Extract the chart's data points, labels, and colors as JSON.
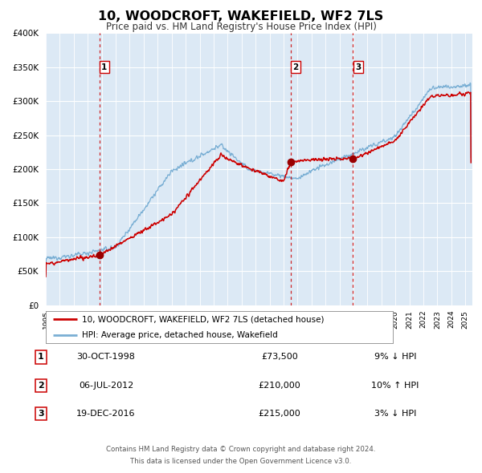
{
  "title": "10, WOODCROFT, WAKEFIELD, WF2 7LS",
  "subtitle": "Price paid vs. HM Land Registry's House Price Index (HPI)",
  "bg_color": "#dce9f5",
  "red_line_color": "#cc0000",
  "blue_line_color": "#7aafd4",
  "grid_color": "#c8d8e8",
  "ylim": [
    0,
    400000
  ],
  "yticks": [
    0,
    50000,
    100000,
    150000,
    200000,
    250000,
    300000,
    350000,
    400000
  ],
  "sale_events": [
    {
      "label": "1",
      "date_x": 1998.83,
      "price": 73500
    },
    {
      "label": "2",
      "date_x": 2012.51,
      "price": 210000
    },
    {
      "label": "3",
      "date_x": 2016.97,
      "price": 215000
    }
  ],
  "table_rows": [
    {
      "num": "1",
      "date": "30-OCT-1998",
      "price": "£73,500",
      "hpi": "9% ↓ HPI"
    },
    {
      "num": "2",
      "date": "06-JUL-2012",
      "price": "£210,000",
      "hpi": "10% ↑ HPI"
    },
    {
      "num": "3",
      "date": "19-DEC-2016",
      "price": "£215,000",
      "hpi": "3% ↓ HPI"
    }
  ],
  "legend_entries": [
    "10, WOODCROFT, WAKEFIELD, WF2 7LS (detached house)",
    "HPI: Average price, detached house, Wakefield"
  ],
  "footer_line1": "Contains HM Land Registry data © Crown copyright and database right 2024.",
  "footer_line2": "This data is licensed under the Open Government Licence v3.0.",
  "xmin": 1995.0,
  "xmax": 2025.5
}
